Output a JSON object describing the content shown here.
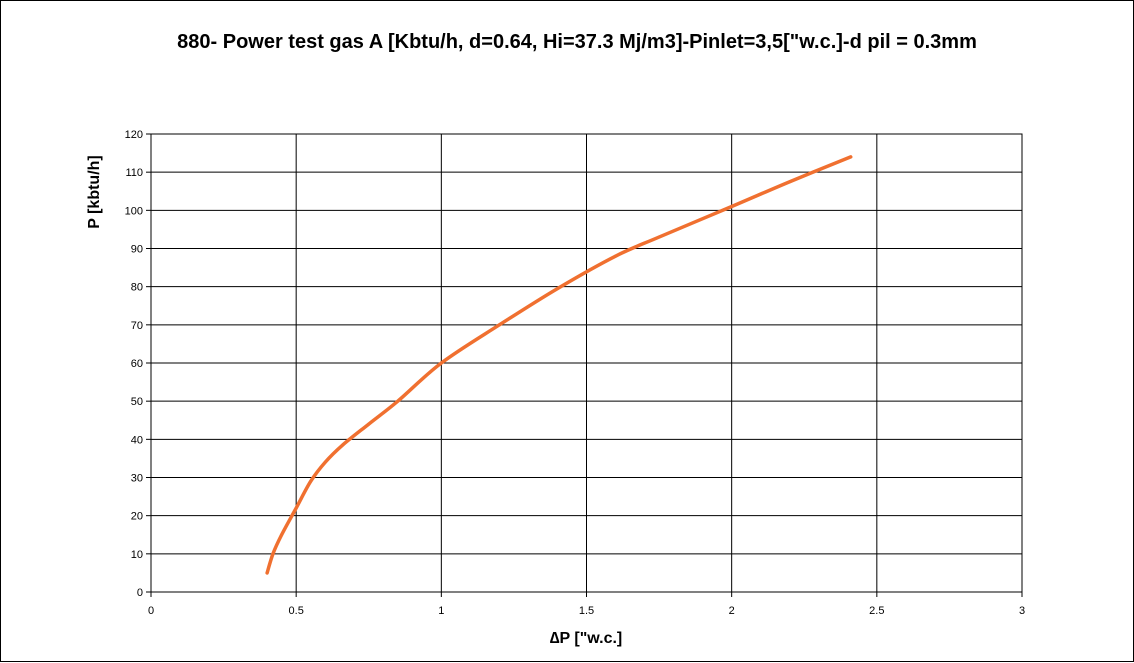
{
  "chart_data": {
    "type": "line",
    "title": "880- Power test gas A  [Kbtu/h, d=0.64, Hi=37.3 Mj/m3]-Pinlet=3,5[\"w.c.]-d pil = 0.3mm",
    "xlabel": "∆P [\"w.c.]",
    "ylabel": "P [kbtu/h]",
    "xlim": [
      0,
      3
    ],
    "ylim": [
      0,
      120
    ],
    "x_ticks": [
      "0",
      "0.5",
      "1",
      "1.5",
      "2",
      "2.5",
      "3"
    ],
    "y_ticks": [
      "0",
      "10",
      "20",
      "30",
      "40",
      "50",
      "60",
      "70",
      "80",
      "90",
      "100",
      "110",
      "120"
    ],
    "grid": true,
    "legend": "none",
    "series": [
      {
        "color": "#f07030",
        "x": [
          0.4,
          0.42,
          0.45,
          0.5,
          0.55,
          0.6,
          0.66,
          0.75,
          0.85,
          1.0,
          1.2,
          1.4,
          1.6,
          1.75,
          2.0,
          2.2,
          2.41
        ],
        "y": [
          5,
          10,
          15,
          22,
          29,
          34,
          38.5,
          44,
          50,
          60,
          70,
          79.5,
          88,
          93,
          101,
          107.5,
          114
        ]
      }
    ]
  }
}
